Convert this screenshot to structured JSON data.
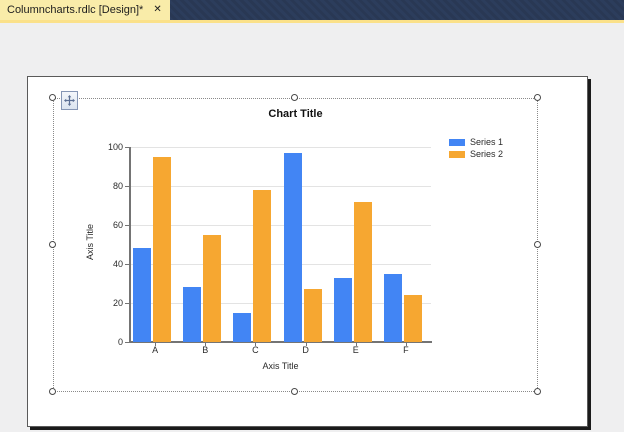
{
  "tab": {
    "title": "Columncharts.rdlc [Design]*",
    "close_glyph": "✕"
  },
  "colors": {
    "tab_active_bg": "#F9ECA9",
    "tab_strip_bg": "#2C3D5C",
    "tab_underline": "#FBE18A",
    "series1": "#4285F4",
    "series2": "#F6A731",
    "axis": "#747474",
    "gridline": "#E3E3E3"
  },
  "chart_data": {
    "type": "bar",
    "title": "Chart Title",
    "xlabel": "Axis Title",
    "ylabel": "Axis Title",
    "categories": [
      "A",
      "B",
      "C",
      "D",
      "E",
      "F"
    ],
    "series": [
      {
        "name": "Series 1",
        "color": "#4285F4",
        "values": [
          48,
          28,
          15,
          97,
          33,
          35
        ]
      },
      {
        "name": "Series 2",
        "color": "#F6A731",
        "values": [
          95,
          55,
          78,
          27,
          72,
          24
        ]
      }
    ],
    "ylim": [
      0,
      100
    ],
    "yticks": [
      0,
      20,
      40,
      60,
      80,
      100
    ],
    "grid": true,
    "legend_position": "right-top"
  }
}
